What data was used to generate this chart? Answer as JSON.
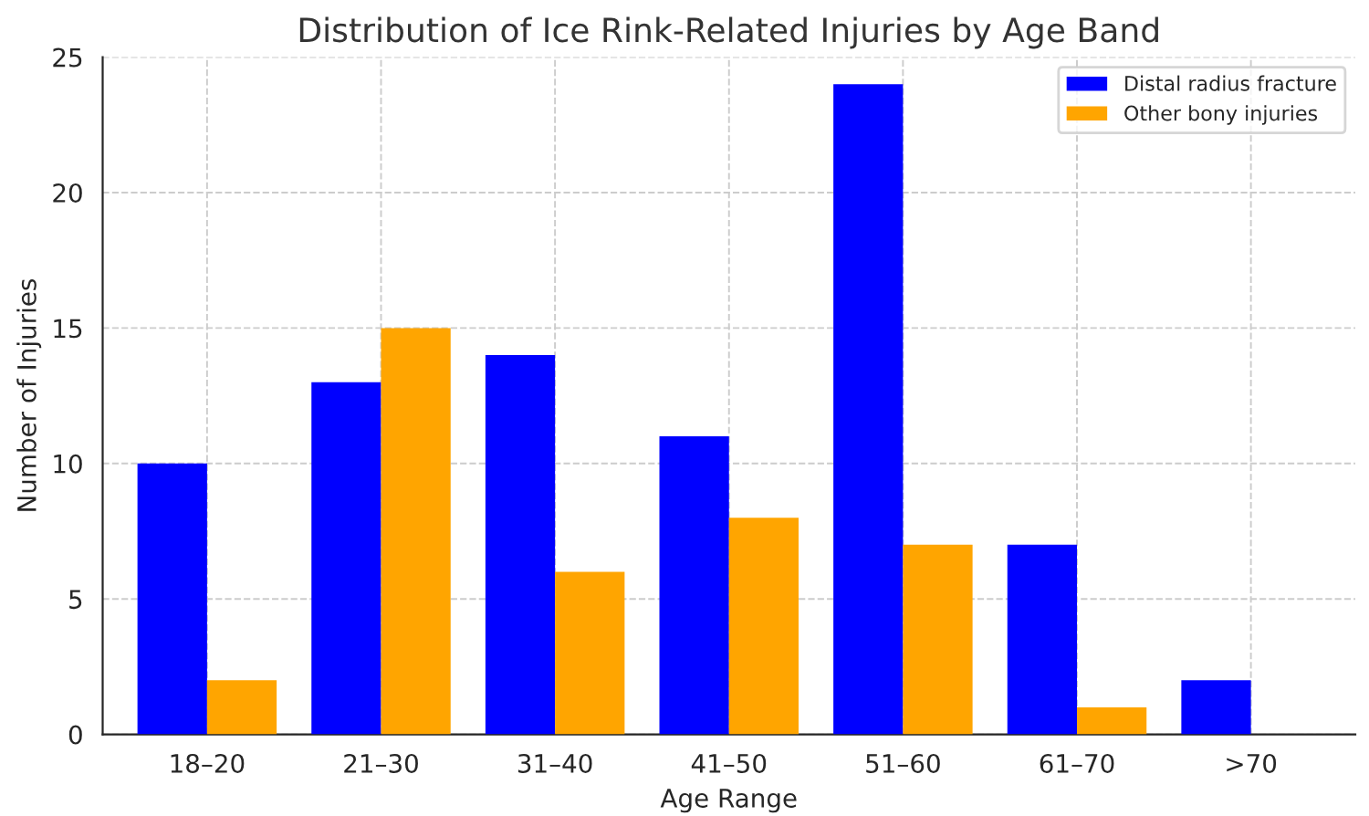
{
  "chart_data": {
    "type": "bar",
    "title": "Distribution of Ice Rink-Related Injuries by Age Band",
    "xlabel": "Age Range",
    "ylabel": "Number of Injuries",
    "categories": [
      "18–20",
      "21–30",
      "31–40",
      "41–50",
      "51–60",
      "61–70",
      ">70"
    ],
    "series": [
      {
        "name": "Distal radius fracture",
        "color": "#0000ff",
        "values": [
          10,
          13,
          14,
          11,
          24,
          7,
          2
        ]
      },
      {
        "name": "Other bony injuries",
        "color": "#ffa500",
        "values": [
          2,
          15,
          6,
          8,
          7,
          1,
          null
        ]
      }
    ],
    "ylim": [
      0,
      25
    ],
    "yticks": [
      0,
      5,
      10,
      15,
      20,
      25
    ],
    "grid": true,
    "legend": "top right"
  }
}
